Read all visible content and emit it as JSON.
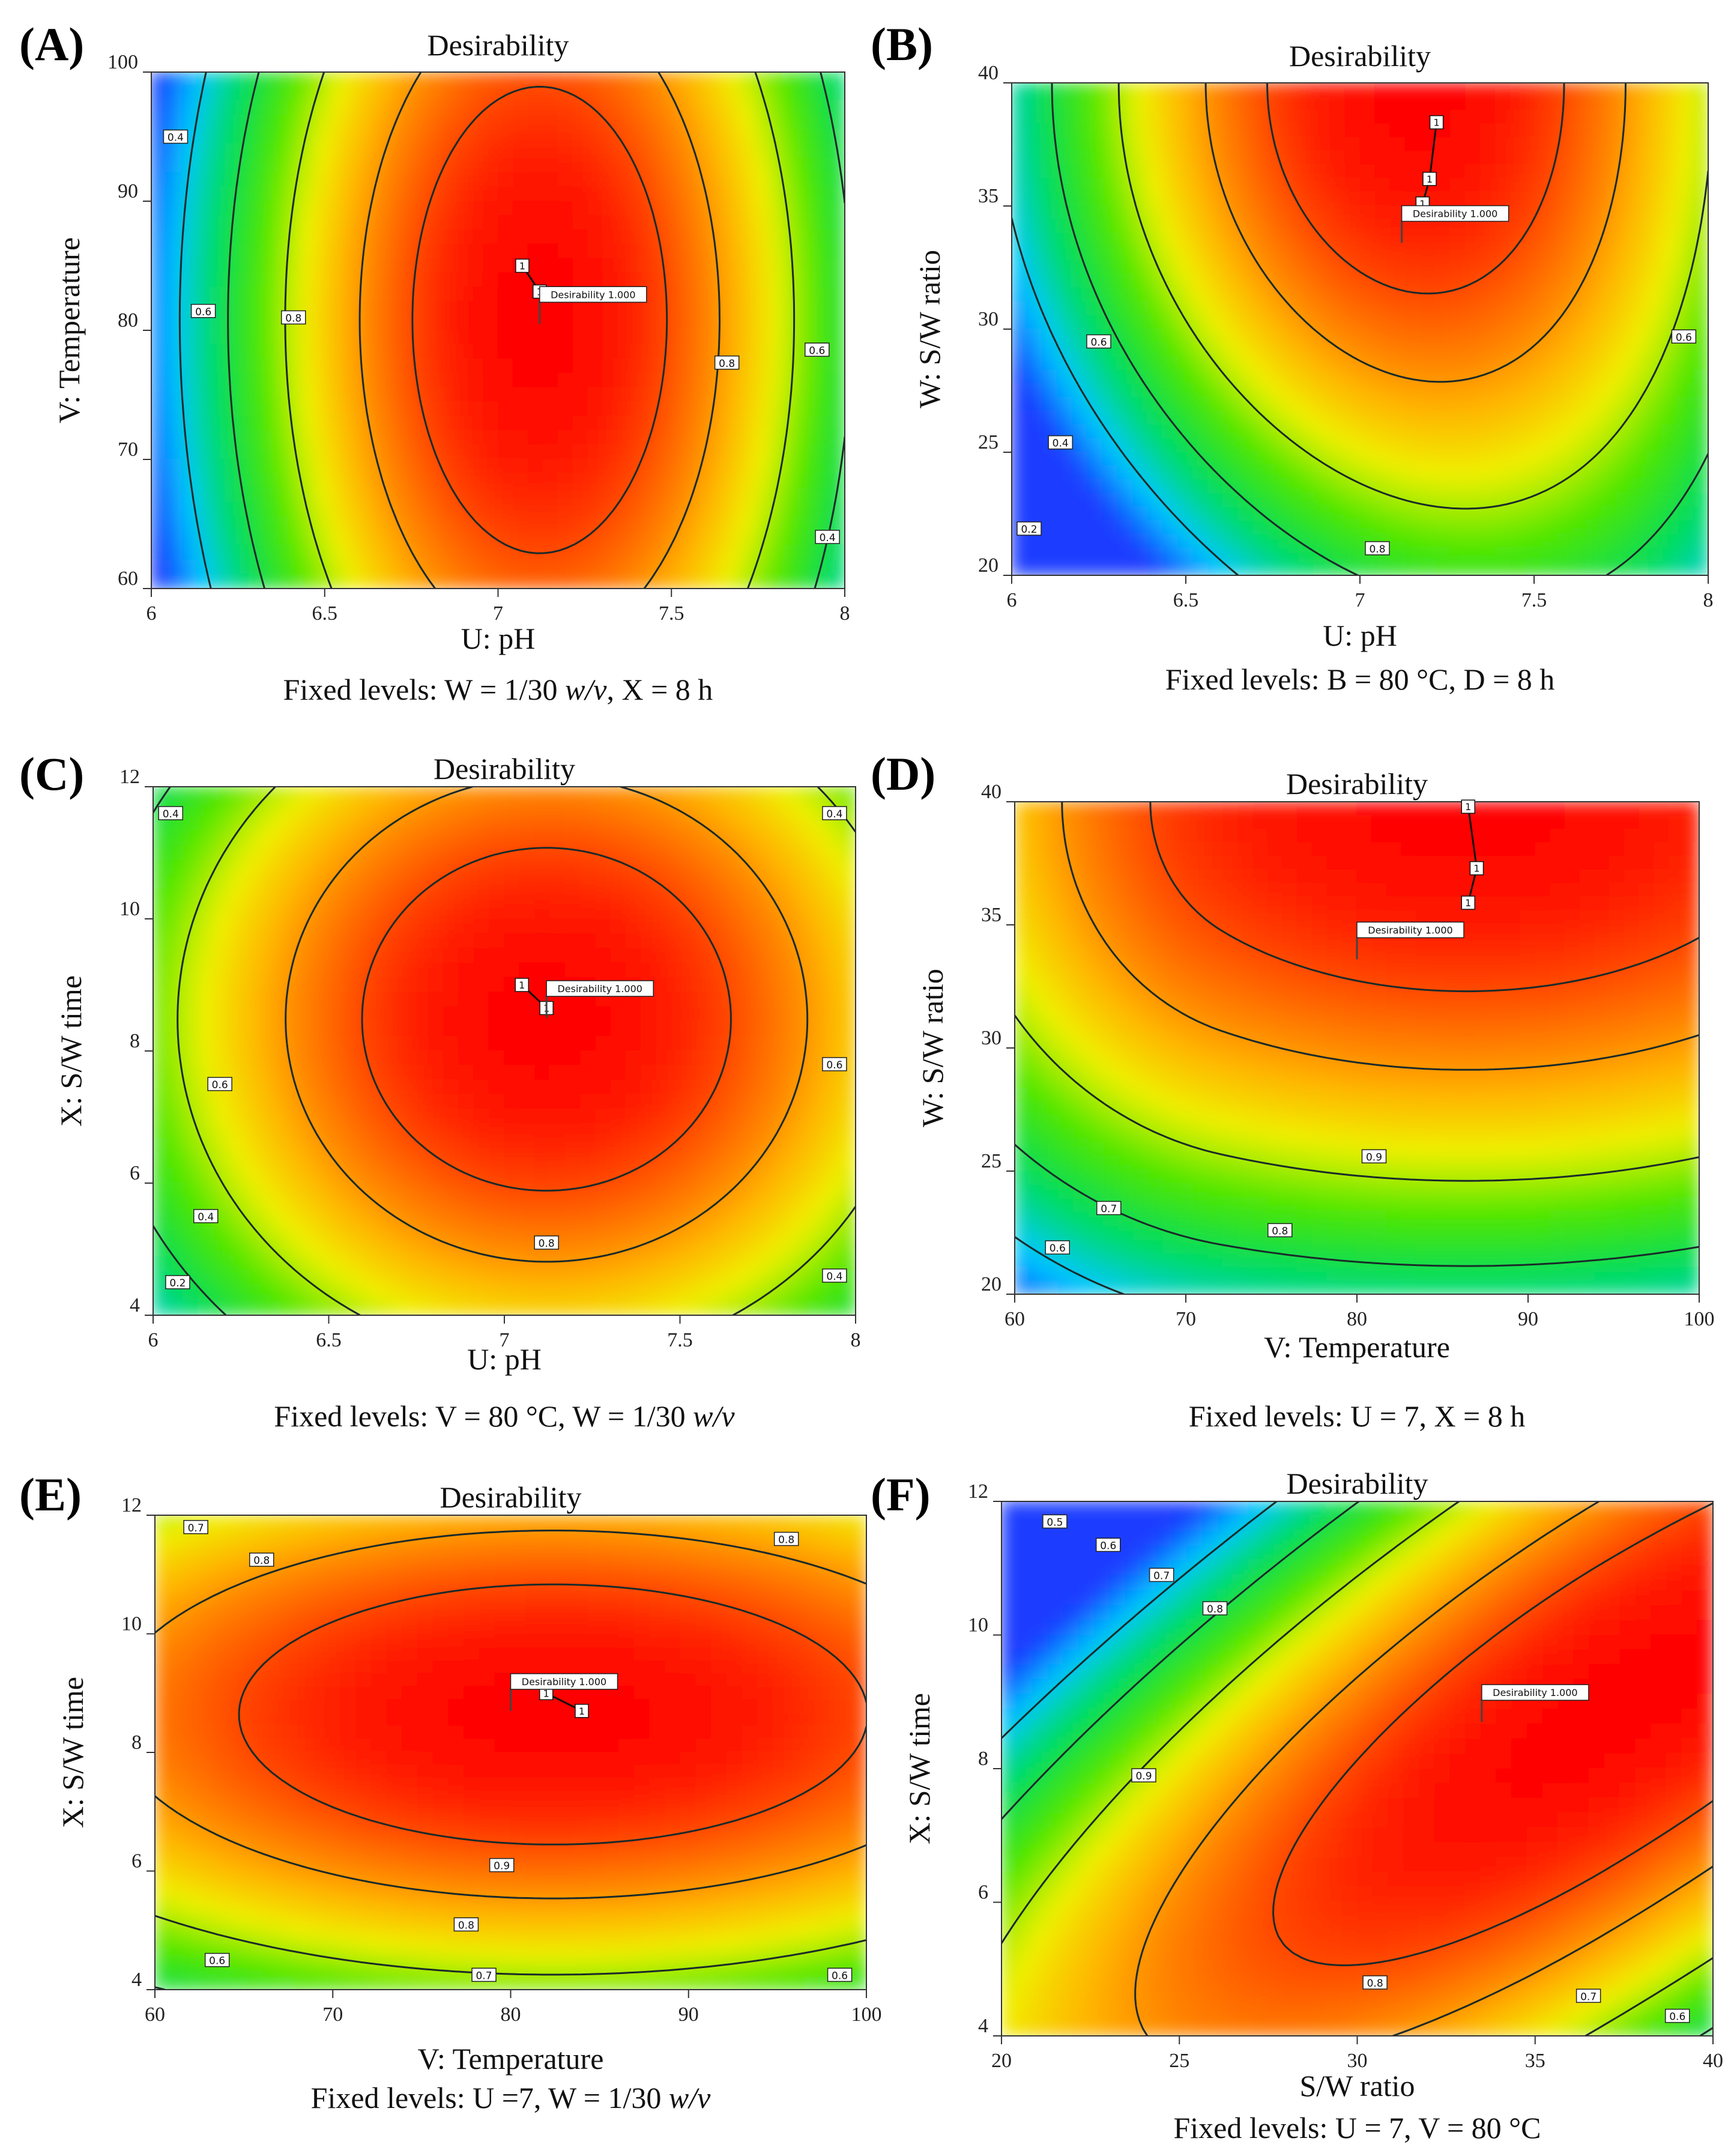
{
  "chart_data": [
    {
      "type": "contour",
      "panel_label": "(A)",
      "title": "Desirability",
      "xlabel": "U: pH",
      "ylabel": "V: Temperature",
      "xlim": [
        6,
        8
      ],
      "ylim": [
        60,
        100
      ],
      "xticks": [
        "6",
        "6.5",
        "7",
        "7.5",
        "8"
      ],
      "yticks": [
        "60",
        "70",
        "80",
        "90",
        "100"
      ],
      "fixed_levels": [
        "Fixed levels: W = 1/30 ",
        "w/v",
        ", X = 8 h"
      ],
      "optimum": {
        "x": 7.12,
        "y": 80.5,
        "label": "Desirability  1.000"
      },
      "design_points": [
        {
          "x": 7.07,
          "y": 85,
          "label": "1"
        },
        {
          "x": 7.12,
          "y": 83,
          "label": "1"
        }
      ],
      "contour_labels": [
        {
          "x": 6.07,
          "y": 95,
          "text": "0.4"
        },
        {
          "x": 6.15,
          "y": 81.5,
          "text": "0.6"
        },
        {
          "x": 6.41,
          "y": 81,
          "text": "0.8"
        },
        {
          "x": 7.66,
          "y": 77.5,
          "text": "0.8"
        },
        {
          "x": 7.92,
          "y": 78.5,
          "text": "0.6"
        },
        {
          "x": 7.95,
          "y": 64,
          "text": "0.4"
        }
      ]
    },
    {
      "type": "contour",
      "panel_label": "(B)",
      "title": "Desirability",
      "xlabel": "U: pH",
      "ylabel": "W: S/W ratio",
      "xlim": [
        6,
        8
      ],
      "ylim": [
        20,
        40
      ],
      "xticks": [
        "6",
        "6.5",
        "7",
        "7.5",
        "8"
      ],
      "yticks": [
        "20",
        "25",
        "30",
        "35",
        "40"
      ],
      "fixed_levels": [
        "Fixed levels: B = 80 °C, D = 8 h"
      ],
      "optimum": {
        "x": 7.12,
        "y": 33.5,
        "label": "Desirability  1.000"
      },
      "design_points": [
        {
          "x": 7.22,
          "y": 38.4,
          "label": "1"
        },
        {
          "x": 7.2,
          "y": 36.1,
          "label": "1"
        },
        {
          "x": 7.18,
          "y": 35.1,
          "label": "1"
        }
      ],
      "contour_labels": [
        {
          "x": 6.05,
          "y": 21.9,
          "text": "0.2"
        },
        {
          "x": 6.14,
          "y": 25.4,
          "text": "0.4"
        },
        {
          "x": 6.25,
          "y": 29.5,
          "text": "0.6"
        },
        {
          "x": 7.05,
          "y": 21.1,
          "text": "0.8"
        },
        {
          "x": 7.93,
          "y": 29.7,
          "text": "0.6"
        }
      ]
    },
    {
      "type": "contour",
      "panel_label": "(C)",
      "title": "Desirability",
      "xlabel": "U: pH",
      "ylabel": "X: S/W time",
      "xlim": [
        6,
        8
      ],
      "ylim": [
        4,
        12
      ],
      "xticks": [
        "6",
        "6.5",
        "7",
        "7.5",
        "8"
      ],
      "yticks": [
        "4",
        "6",
        "8",
        "10",
        "12"
      ],
      "fixed_levels": [
        "Fixed levels: V = 80 °C, W = 1/30 ",
        "w/v"
      ],
      "optimum": {
        "x": 7.12,
        "y": 8.5,
        "label": "Desirability  1.000"
      },
      "design_points": [
        {
          "x": 7.05,
          "y": 9.0,
          "label": "1"
        },
        {
          "x": 7.12,
          "y": 8.65,
          "label": "1"
        }
      ],
      "contour_labels": [
        {
          "x": 6.05,
          "y": 11.6,
          "text": "0.4"
        },
        {
          "x": 6.19,
          "y": 7.5,
          "text": "0.6"
        },
        {
          "x": 6.15,
          "y": 5.5,
          "text": "0.4"
        },
        {
          "x": 6.07,
          "y": 4.5,
          "text": "0.2"
        },
        {
          "x": 7.12,
          "y": 5.1,
          "text": "0.8"
        },
        {
          "x": 7.94,
          "y": 7.8,
          "text": "0.6"
        },
        {
          "x": 7.94,
          "y": 11.6,
          "text": "0.4"
        },
        {
          "x": 7.94,
          "y": 4.6,
          "text": "0.4"
        }
      ]
    },
    {
      "type": "contour",
      "panel_label": "(D)",
      "title": "Desirability",
      "xlabel": "V: Temperature",
      "ylabel": "W: S/W ratio",
      "xlim": [
        60,
        100
      ],
      "ylim": [
        20,
        40
      ],
      "xticks": [
        "60",
        "70",
        "80",
        "90",
        "100"
      ],
      "yticks": [
        "20",
        "25",
        "30",
        "35",
        "40"
      ],
      "fixed_levels": [
        "Fixed levels: U = 7, X = 8 h"
      ],
      "optimum": {
        "x": 80,
        "y": 33.6,
        "label": "Desirability  1.000"
      },
      "design_points": [
        {
          "x": 86.5,
          "y": 39.8,
          "label": "1"
        },
        {
          "x": 87,
          "y": 37.3,
          "label": "1"
        },
        {
          "x": 86.5,
          "y": 35.9,
          "label": "1"
        }
      ],
      "contour_labels": [
        {
          "x": 62.5,
          "y": 21.9,
          "text": "0.6"
        },
        {
          "x": 65.5,
          "y": 23.5,
          "text": "0.7"
        },
        {
          "x": 75.5,
          "y": 22.6,
          "text": "0.8"
        },
        {
          "x": 81,
          "y": 25.6,
          "text": "0.9"
        }
      ]
    },
    {
      "type": "contour",
      "panel_label": "(E)",
      "title": "Desirability",
      "xlabel": "V: Temperature",
      "ylabel": "X: S/W time",
      "xlim": [
        60,
        100
      ],
      "ylim": [
        4,
        12
      ],
      "xticks": [
        "60",
        "70",
        "80",
        "90",
        "100"
      ],
      "yticks": [
        "4",
        "6",
        "8",
        "10",
        "12"
      ],
      "fixed_levels": [
        "Fixed levels: U =7, W = 1/30 ",
        "w/v"
      ],
      "optimum": {
        "x": 80,
        "y": 8.7,
        "label": "Desirability  1.000"
      },
      "design_points": [
        {
          "x": 82,
          "y": 9.0,
          "label": "1"
        },
        {
          "x": 84,
          "y": 8.7,
          "label": "1"
        }
      ],
      "contour_labels": [
        {
          "x": 62.3,
          "y": 11.8,
          "text": "0.7"
        },
        {
          "x": 66,
          "y": 11.25,
          "text": "0.8"
        },
        {
          "x": 95.5,
          "y": 11.6,
          "text": "0.8"
        },
        {
          "x": 79.5,
          "y": 6.1,
          "text": "0.9"
        },
        {
          "x": 77.5,
          "y": 5.1,
          "text": "0.8"
        },
        {
          "x": 63.5,
          "y": 4.5,
          "text": "0.6"
        },
        {
          "x": 78.5,
          "y": 4.25,
          "text": "0.7"
        },
        {
          "x": 98.5,
          "y": 4.25,
          "text": "0.6"
        }
      ]
    },
    {
      "type": "contour",
      "panel_label": "(F)",
      "title": "Desirability",
      "xlabel": "S/W ratio",
      "ylabel": "X: S/W time",
      "xlim": [
        20,
        40
      ],
      "ylim": [
        4,
        12
      ],
      "xticks": [
        "20",
        "25",
        "30",
        "35",
        "40"
      ],
      "yticks": [
        "4",
        "6",
        "8",
        "10",
        "12"
      ],
      "fixed_levels": [
        "Fixed levels: U = 7, V = 80 °C"
      ],
      "optimum": {
        "x": 33.5,
        "y": 8.7,
        "label": "Desirability  1.000"
      },
      "design_points": [],
      "contour_labels": [
        {
          "x": 21.5,
          "y": 11.7,
          "text": "0.5"
        },
        {
          "x": 23,
          "y": 11.35,
          "text": "0.6"
        },
        {
          "x": 24.5,
          "y": 10.9,
          "text": "0.7"
        },
        {
          "x": 26,
          "y": 10.4,
          "text": "0.8"
        },
        {
          "x": 24,
          "y": 7.9,
          "text": "0.9"
        },
        {
          "x": 30.5,
          "y": 4.8,
          "text": "0.8"
        },
        {
          "x": 36.5,
          "y": 4.6,
          "text": "0.7"
        },
        {
          "x": 39,
          "y": 4.3,
          "text": "0.6"
        }
      ]
    }
  ]
}
